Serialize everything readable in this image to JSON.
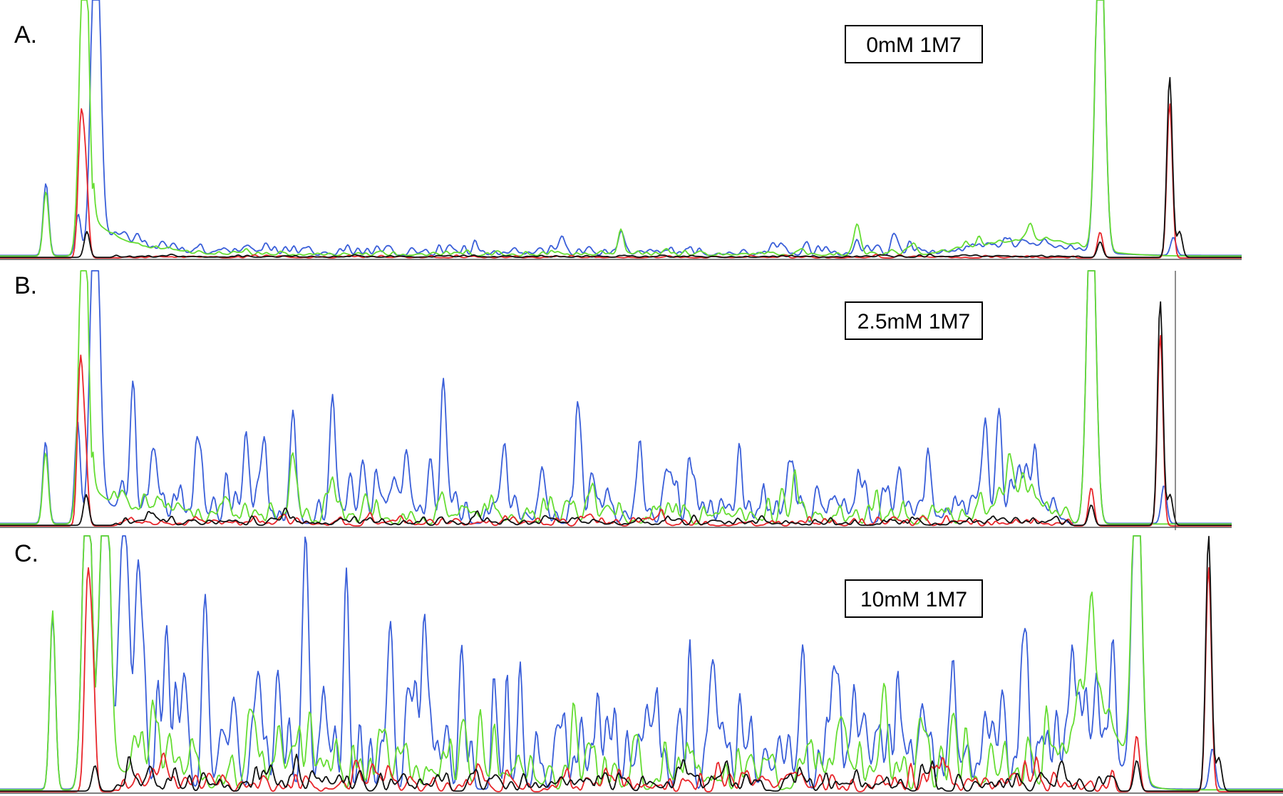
{
  "colors": {
    "blue": "#3a5fd9",
    "green": "#66dd33",
    "red": "#e8262b",
    "black": "#111111"
  },
  "chart_data": [
    {
      "type": "line",
      "panel_label": "A.",
      "condition_label": "0mM 1M7",
      "x_range": [
        0,
        1
      ],
      "ylim": [
        0,
        1
      ],
      "series_colors": [
        "blue",
        "green",
        "red",
        "black"
      ],
      "peaks": {
        "blue": [
          [
            0.037,
            0.28
          ],
          [
            0.063,
            0.16
          ],
          [
            0.077,
            1.4
          ],
          [
            0.11,
            0.04
          ],
          [
            0.16,
            0.02
          ],
          [
            0.5,
            0.09
          ],
          [
            0.69,
            0.05
          ],
          [
            0.72,
            0.06
          ],
          [
            0.886,
            1.4
          ],
          [
            0.945,
            0.07
          ]
        ],
        "green": [
          [
            0.037,
            0.25
          ],
          [
            0.068,
            1.4
          ],
          [
            0.5,
            0.1
          ],
          [
            0.69,
            0.11
          ],
          [
            0.83,
            0.06
          ],
          [
            0.886,
            1.4
          ]
        ],
        "red": [
          [
            0.065,
            0.5
          ],
          [
            0.069,
            0.32
          ],
          [
            0.886,
            0.1
          ],
          [
            0.942,
            0.6
          ]
        ],
        "black": [
          [
            0.07,
            0.1
          ],
          [
            0.886,
            0.06
          ],
          [
            0.942,
            0.7
          ],
          [
            0.95,
            0.1
          ]
        ]
      },
      "peak_width": 0.0022,
      "noise": 0.02,
      "humps": [
        [
          0.83,
          0.06,
          0.04
        ]
      ]
    },
    {
      "type": "line",
      "panel_label": "B.",
      "condition_label": "2.5mM 1M7",
      "x_range": [
        0,
        1
      ],
      "ylim": [
        0,
        1
      ],
      "series_colors": [
        "blue",
        "green",
        "red",
        "black"
      ],
      "peaks": {
        "blue": [
          [
            0.037,
            0.32
          ],
          [
            0.063,
            0.4
          ],
          [
            0.077,
            1.4
          ],
          [
            0.107,
            0.25
          ],
          [
            0.16,
            0.22
          ],
          [
            0.2,
            0.22
          ],
          [
            0.238,
            0.42
          ],
          [
            0.27,
            0.47
          ],
          [
            0.33,
            0.2
          ],
          [
            0.36,
            0.22
          ],
          [
            0.35,
            0.22
          ],
          [
            0.32,
            0.15
          ],
          [
            0.36,
            0.28
          ],
          [
            0.41,
            0.14
          ],
          [
            0.44,
            0.2
          ],
          [
            0.47,
            0.22
          ],
          [
            0.52,
            0.2
          ],
          [
            0.56,
            0.18
          ],
          [
            0.6,
            0.22
          ],
          [
            0.8,
            0.32
          ],
          [
            0.81,
            0.3
          ],
          [
            0.84,
            0.18
          ],
          [
            0.886,
            1.4
          ],
          [
            0.945,
            0.15
          ]
        ],
        "green": [
          [
            0.037,
            0.28
          ],
          [
            0.068,
            1.4
          ],
          [
            0.238,
            0.2
          ],
          [
            0.27,
            0.15
          ],
          [
            0.886,
            1.4
          ],
          [
            0.82,
            0.1
          ]
        ],
        "red": [
          [
            0.065,
            0.6
          ],
          [
            0.069,
            0.3
          ],
          [
            0.886,
            0.15
          ],
          [
            0.942,
            0.75
          ]
        ],
        "black": [
          [
            0.07,
            0.12
          ],
          [
            0.886,
            0.08
          ],
          [
            0.942,
            0.88
          ],
          [
            0.95,
            0.12
          ]
        ]
      },
      "peak_width": 0.0022,
      "noise": 0.09,
      "humps": [
        [
          0.83,
          0.12,
          0.015
        ]
      ]
    },
    {
      "type": "line",
      "panel_label": "C.",
      "condition_label": "10mM 1M7",
      "x_range": [
        0,
        1
      ],
      "ylim": [
        0,
        1
      ],
      "series_colors": [
        "blue",
        "green",
        "red",
        "black"
      ],
      "peaks": {
        "blue": [
          [
            0.041,
            0.68
          ],
          [
            0.068,
            1.4
          ],
          [
            0.082,
            1.4
          ],
          [
            0.096,
            0.78
          ],
          [
            0.108,
            0.74
          ],
          [
            0.13,
            0.55
          ],
          [
            0.16,
            0.55
          ],
          [
            0.238,
            0.81
          ],
          [
            0.27,
            0.61
          ],
          [
            0.305,
            0.45
          ],
          [
            0.33,
            0.43
          ],
          [
            0.36,
            0.5
          ],
          [
            0.8,
            0.34
          ],
          [
            0.84,
            0.15
          ],
          [
            0.886,
            1.4
          ],
          [
            0.945,
            0.16
          ]
        ],
        "green": [
          [
            0.041,
            0.7
          ],
          [
            0.068,
            1.4
          ],
          [
            0.082,
            1.4
          ],
          [
            0.69,
            0.35
          ],
          [
            0.85,
            0.38
          ],
          [
            0.886,
            1.4
          ]
        ],
        "red": [
          [
            0.068,
            0.75
          ],
          [
            0.072,
            0.5
          ],
          [
            0.886,
            0.22
          ],
          [
            0.942,
            0.88
          ]
        ],
        "black": [
          [
            0.074,
            0.1
          ],
          [
            0.886,
            0.12
          ],
          [
            0.942,
            1.0
          ],
          [
            0.95,
            0.13
          ]
        ]
      },
      "peak_width": 0.0022,
      "noise": 0.22,
      "humps": [
        [
          0.855,
          0.3,
          0.018
        ]
      ]
    }
  ]
}
